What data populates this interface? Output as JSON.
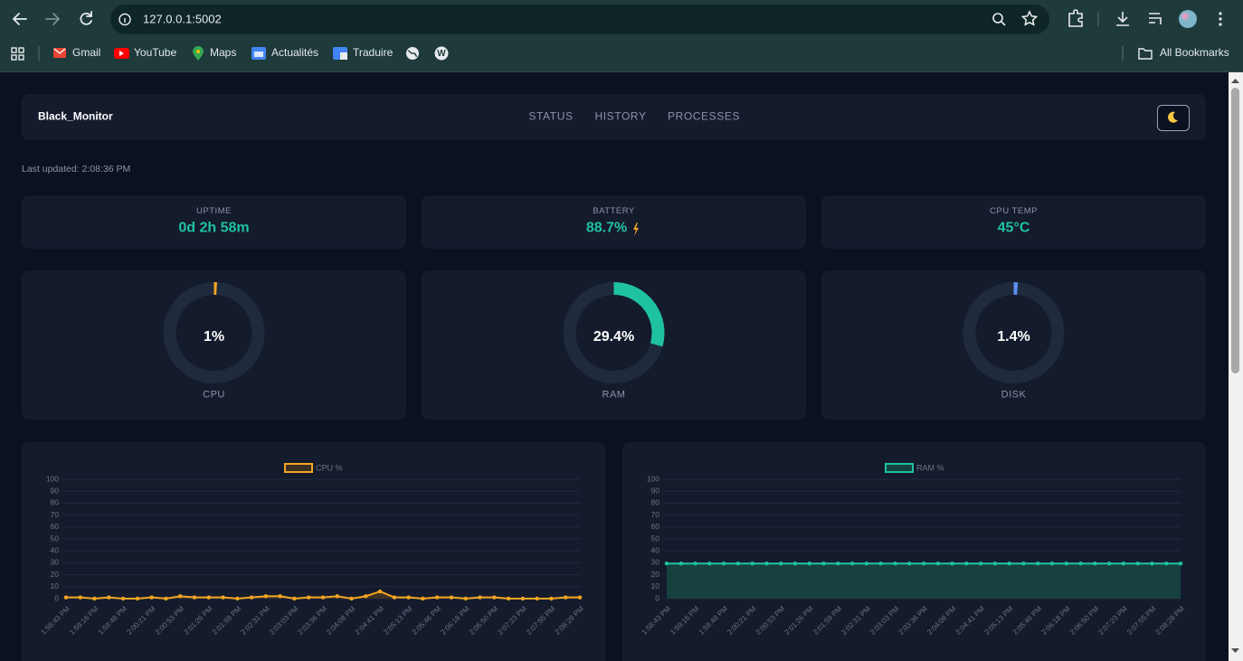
{
  "browser": {
    "url": "127.0.0.1:5002",
    "bookmarks": [
      "Gmail",
      "YouTube",
      "Maps",
      "Actualités",
      "Traduire"
    ],
    "all_bookmarks": "All Bookmarks"
  },
  "dashboard": {
    "brand": "Black_Monitor",
    "nav": [
      "STATUS",
      "HISTORY",
      "PROCESSES"
    ],
    "last_updated": "Last updated: 2:08:36 PM",
    "stats": [
      {
        "label": "UPTIME",
        "value": "0d 2h 58m"
      },
      {
        "label": "BATTERY",
        "value": "88.7%"
      },
      {
        "label": "CPU TEMP",
        "value": "45°C"
      }
    ],
    "gauges": [
      {
        "label": "CPU",
        "value": 1,
        "value_label": "1%",
        "color": "#f5a623"
      },
      {
        "label": "RAM",
        "value": 29.4,
        "value_label": "29.4%",
        "color": "#1fc2a0"
      },
      {
        "label": "DISK",
        "value": 1.4,
        "value_label": "1.4%",
        "color": "#5b8def"
      }
    ]
  },
  "chart_data": [
    {
      "type": "line",
      "categories": [
        "1:58:43 PM",
        null,
        "1:59:16 PM",
        null,
        "1:59:48 PM",
        null,
        "2:00:21 PM",
        null,
        "2:00:53 PM",
        null,
        "2:01:26 PM",
        null,
        "2:01:59 PM",
        null,
        "2:02:31 PM",
        null,
        "2:03:03 PM",
        null,
        "2:03:36 PM",
        null,
        "2:04:08 PM",
        null,
        "2:04:41 PM",
        null,
        "2:05:13 PM",
        null,
        "2:05:46 PM",
        null,
        "2:06:18 PM",
        null,
        "2:06:50 PM",
        null,
        "2:07:23 PM",
        null,
        "2:07:55 PM",
        null,
        "2:08:28 PM"
      ],
      "series": [
        {
          "name": "CPU %",
          "color": "#f5a623",
          "fill": "#3a3024",
          "values": [
            1,
            1,
            0,
            1,
            0,
            0,
            1,
            0,
            2,
            1,
            1,
            1,
            0,
            1,
            2,
            2,
            0,
            1,
            1,
            2,
            0,
            2,
            6,
            1,
            1,
            0,
            1,
            1,
            0,
            1,
            1,
            0,
            0,
            0,
            0,
            1,
            1
          ]
        }
      ],
      "ylim": [
        0,
        100
      ],
      "yticks": [
        0,
        10,
        20,
        30,
        40,
        50,
        60,
        70,
        80,
        90,
        100
      ],
      "grid": true
    },
    {
      "type": "line",
      "categories": [
        "1:58:43 PM",
        null,
        "1:59:16 PM",
        null,
        "1:59:48 PM",
        null,
        "2:00:21 PM",
        null,
        "2:00:53 PM",
        null,
        "2:01:26 PM",
        null,
        "2:01:59 PM",
        null,
        "2:02:31 PM",
        null,
        "2:03:03 PM",
        null,
        "2:03:36 PM",
        null,
        "2:04:08 PM",
        null,
        "2:04:41 PM",
        null,
        "2:05:13 PM",
        null,
        "2:05:46 PM",
        null,
        "2:06:18 PM",
        null,
        "2:06:50 PM",
        null,
        "2:07:23 PM",
        null,
        "2:07:55 PM",
        null,
        "2:08:28 PM"
      ],
      "series": [
        {
          "name": "RAM %",
          "color": "#1fc2a0",
          "fill": "#17413f",
          "values": [
            29.4,
            29.4,
            29.4,
            29.4,
            29.4,
            29.4,
            29.4,
            29.4,
            29.4,
            29.4,
            29.4,
            29.4,
            29.4,
            29.4,
            29.4,
            29.4,
            29.4,
            29.4,
            29.4,
            29.4,
            29.4,
            29.4,
            29.4,
            29.4,
            29.4,
            29.4,
            29.4,
            29.4,
            29.4,
            29.4,
            29.4,
            29.4,
            29.4,
            29.4,
            29.4,
            29.4,
            29.4
          ]
        }
      ],
      "ylim": [
        0,
        100
      ],
      "yticks": [
        0,
        10,
        20,
        30,
        40,
        50,
        60,
        70,
        80,
        90,
        100
      ],
      "grid": true
    }
  ]
}
